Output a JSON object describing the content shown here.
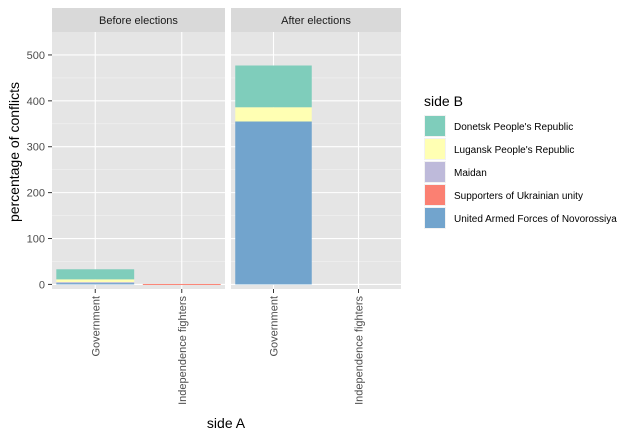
{
  "chart_data": {
    "type": "bar",
    "stacked": true,
    "xlabel": "side A",
    "ylabel": "percentage of conflicts",
    "ylim": [
      -10,
      550
    ],
    "yticks": [
      0,
      100,
      200,
      300,
      400,
      500
    ],
    "categories": [
      "Government",
      "Independence fighters"
    ],
    "panels": [
      {
        "name": "Before elections",
        "stacks": [
          {
            "category": "Government",
            "segments": [
              {
                "side_b": "United Armed Forces of Novorossiya",
                "value": 3
              },
              {
                "side_b": "Maidan",
                "value": 2
              },
              {
                "side_b": "Lugansk People's Republic",
                "value": 6
              },
              {
                "side_b": "Donetsk People's Republic",
                "value": 22
              }
            ]
          },
          {
            "category": "Independence fighters",
            "segments": [
              {
                "side_b": "Supporters of Ukrainian unity",
                "value": 1
              }
            ]
          }
        ]
      },
      {
        "name": "After elections",
        "stacks": [
          {
            "category": "Government",
            "segments": [
              {
                "side_b": "United Armed Forces of Novorossiya",
                "value": 355
              },
              {
                "side_b": "Lugansk People's Republic",
                "value": 31
              },
              {
                "side_b": "Donetsk People's Republic",
                "value": 91
              }
            ]
          },
          {
            "category": "Independence fighters",
            "segments": []
          }
        ]
      }
    ],
    "legend": {
      "title": "side B",
      "position": "right",
      "entries": [
        {
          "name": "Donetsk People's Republic",
          "color": "#7fcdbb"
        },
        {
          "name": "Lugansk People's Republic",
          "color": "#ffffb3"
        },
        {
          "name": "Maidan",
          "color": "#bebada"
        },
        {
          "name": "Supporters of Ukrainian unity",
          "color": "#fb8072"
        },
        {
          "name": "United Armed Forces of Novorossiya",
          "color": "#72a4cd"
        }
      ]
    },
    "grid": true,
    "panel_background": "#e5e5e5",
    "strip_background": "#d9d9d9"
  }
}
